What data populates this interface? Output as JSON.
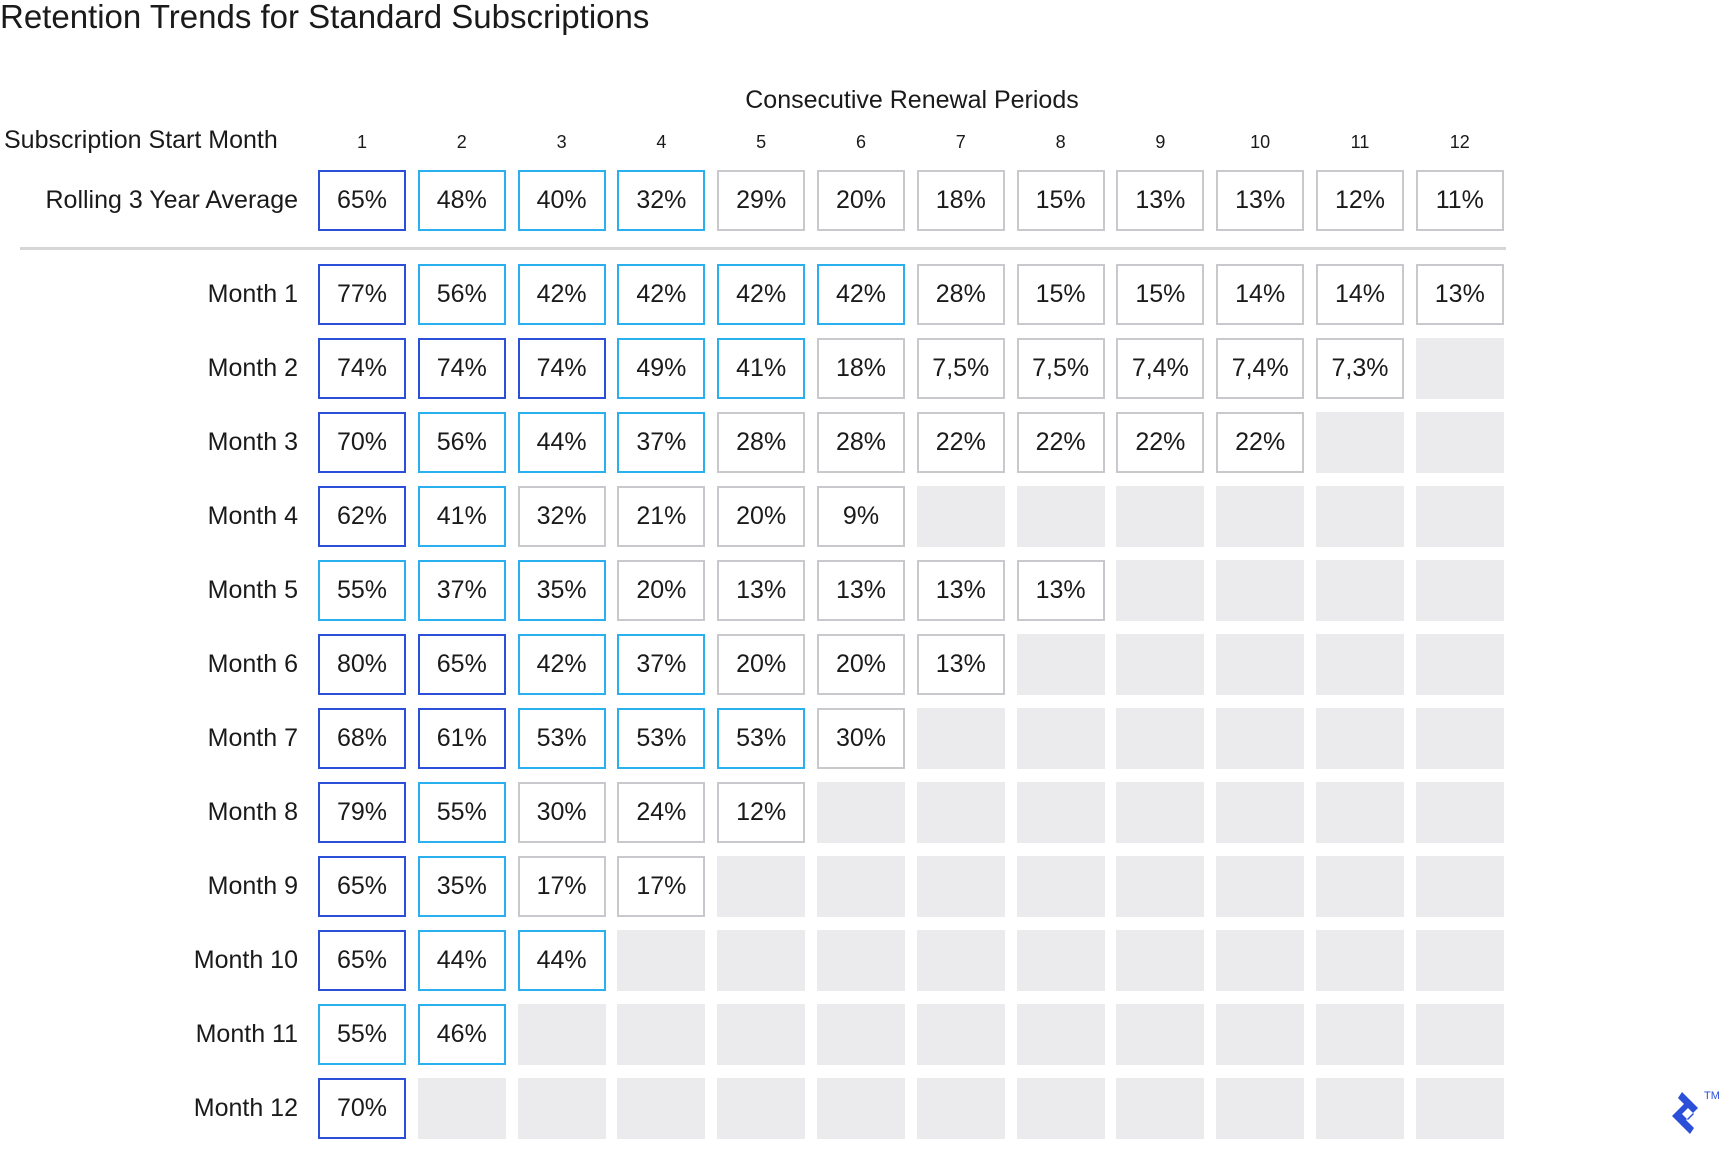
{
  "chart_data": {
    "type": "table",
    "title": "Retention Trends for Standard Subscriptions",
    "xlabel": "Consecutive Renewal Periods",
    "ylabel": "Subscription Start Month",
    "columns": [
      "1",
      "2",
      "3",
      "4",
      "5",
      "6",
      "7",
      "8",
      "9",
      "10",
      "11",
      "12"
    ],
    "colors": {
      "high": "#2b4fd8",
      "mid": "#2bb0ef",
      "low": "#c9c9cd",
      "empty": "#ebebed"
    },
    "summary_row": {
      "label": "Rolling 3 Year Average",
      "values": [
        "65%",
        "48%",
        "40%",
        "32%",
        "29%",
        "20%",
        "18%",
        "15%",
        "13%",
        "13%",
        "12%",
        "11%"
      ],
      "levels": [
        "high",
        "mid",
        "mid",
        "mid",
        "low",
        "low",
        "low",
        "low",
        "low",
        "low",
        "low",
        "low"
      ]
    },
    "rows": [
      {
        "label": "Month 1",
        "values": [
          "77%",
          "56%",
          "42%",
          "42%",
          "42%",
          "42%",
          "28%",
          "15%",
          "15%",
          "14%",
          "14%",
          "13%"
        ],
        "levels": [
          "high",
          "mid",
          "mid",
          "mid",
          "mid",
          "mid",
          "low",
          "low",
          "low",
          "low",
          "low",
          "low"
        ]
      },
      {
        "label": "Month 2",
        "values": [
          "74%",
          "74%",
          "74%",
          "49%",
          "41%",
          "18%",
          "7,5%",
          "7,5%",
          "7,4%",
          "7,4%",
          "7,3%"
        ],
        "levels": [
          "high",
          "high",
          "high",
          "mid",
          "mid",
          "low",
          "low",
          "low",
          "low",
          "low",
          "low"
        ]
      },
      {
        "label": "Month 3",
        "values": [
          "70%",
          "56%",
          "44%",
          "37%",
          "28%",
          "28%",
          "22%",
          "22%",
          "22%",
          "22%"
        ],
        "levels": [
          "high",
          "mid",
          "mid",
          "mid",
          "low",
          "low",
          "low",
          "low",
          "low",
          "low"
        ]
      },
      {
        "label": "Month 4",
        "values": [
          "62%",
          "41%",
          "32%",
          "21%",
          "20%",
          "9%"
        ],
        "levels": [
          "high",
          "mid",
          "low",
          "low",
          "low",
          "low"
        ]
      },
      {
        "label": "Month 5",
        "values": [
          "55%",
          "37%",
          "35%",
          "20%",
          "13%",
          "13%",
          "13%",
          "13%"
        ],
        "levels": [
          "mid",
          "mid",
          "mid",
          "low",
          "low",
          "low",
          "low",
          "low"
        ]
      },
      {
        "label": "Month 6",
        "values": [
          "80%",
          "65%",
          "42%",
          "37%",
          "20%",
          "20%",
          "13%"
        ],
        "levels": [
          "high",
          "high",
          "mid",
          "mid",
          "low",
          "low",
          "low"
        ]
      },
      {
        "label": "Month 7",
        "values": [
          "68%",
          "61%",
          "53%",
          "53%",
          "53%",
          "30%"
        ],
        "levels": [
          "high",
          "high",
          "mid",
          "mid",
          "mid",
          "low"
        ]
      },
      {
        "label": "Month 8",
        "values": [
          "79%",
          "55%",
          "30%",
          "24%",
          "12%"
        ],
        "levels": [
          "high",
          "mid",
          "low",
          "low",
          "low"
        ]
      },
      {
        "label": "Month 9",
        "values": [
          "65%",
          "35%",
          "17%",
          "17%"
        ],
        "levels": [
          "high",
          "mid",
          "low",
          "low"
        ]
      },
      {
        "label": "Month 10",
        "values": [
          "65%",
          "44%",
          "44%"
        ],
        "levels": [
          "high",
          "mid",
          "mid"
        ]
      },
      {
        "label": "Month 11",
        "values": [
          "55%",
          "46%"
        ],
        "levels": [
          "mid",
          "mid"
        ]
      },
      {
        "label": "Month 12",
        "values": [
          "70%"
        ],
        "levels": [
          "high"
        ]
      }
    ]
  },
  "logo": {
    "name": "toptal-logo-icon",
    "trademark": "TM"
  }
}
